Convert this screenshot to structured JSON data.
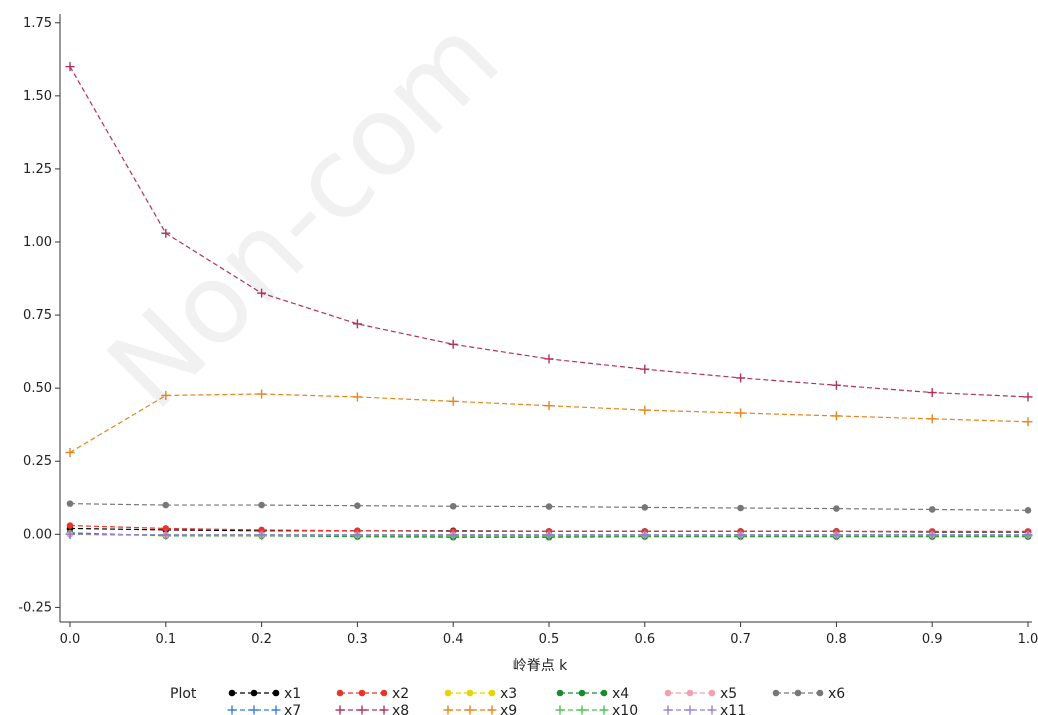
{
  "watermark": "Non-com",
  "chart_data": {
    "type": "line",
    "title": "",
    "xlabel": "岭脊点 k",
    "ylabel": "",
    "xlim": [
      0.0,
      1.0
    ],
    "ylim": [
      -0.3,
      1.78
    ],
    "x_ticks": [
      "0.0",
      "0.1",
      "0.2",
      "0.3",
      "0.4",
      "0.5",
      "0.6",
      "0.7",
      "0.8",
      "0.9",
      "1.0"
    ],
    "y_ticks": [
      "-0.25",
      "0.00",
      "0.25",
      "0.50",
      "0.75",
      "1.00",
      "1.25",
      "1.50",
      "1.75"
    ],
    "x": [
      0.0,
      0.1,
      0.2,
      0.3,
      0.4,
      0.5,
      0.6,
      0.7,
      0.8,
      0.9,
      1.0
    ],
    "grid": false,
    "legend": {
      "title": "Plot",
      "placement": "bottom"
    },
    "series": [
      {
        "name": "x1",
        "color": "#000000",
        "marker": "dot",
        "values": [
          0.02,
          0.015,
          0.012,
          0.012,
          0.012,
          0.01,
          0.01,
          0.01,
          0.01,
          0.008,
          0.008
        ]
      },
      {
        "name": "x2",
        "color": "#e8352b",
        "marker": "dot",
        "values": [
          0.03,
          0.02,
          0.015,
          0.012,
          0.01,
          0.01,
          0.01,
          0.01,
          0.01,
          0.01,
          0.01
        ]
      },
      {
        "name": "x3",
        "color": "#e8d400",
        "marker": "dot",
        "values": [
          0.0,
          -0.005,
          -0.005,
          -0.005,
          -0.005,
          -0.005,
          -0.005,
          -0.005,
          -0.005,
          -0.005,
          -0.005
        ]
      },
      {
        "name": "x4",
        "color": "#1a8a2e",
        "marker": "dot",
        "values": [
          0.005,
          -0.005,
          -0.005,
          -0.008,
          -0.01,
          -0.01,
          -0.008,
          -0.008,
          -0.008,
          -0.008,
          -0.008
        ]
      },
      {
        "name": "x5",
        "color": "#f2a0b0",
        "marker": "dot",
        "values": [
          0.0,
          -0.002,
          -0.002,
          -0.002,
          -0.002,
          -0.002,
          -0.002,
          -0.002,
          -0.002,
          -0.002,
          -0.002
        ]
      },
      {
        "name": "x6",
        "color": "#777777",
        "marker": "dot",
        "values": [
          0.105,
          0.1,
          0.1,
          0.098,
          0.096,
          0.095,
          0.092,
          0.09,
          0.088,
          0.085,
          0.082
        ]
      },
      {
        "name": "x7",
        "color": "#3a7fd0",
        "marker": "plus",
        "values": [
          0.0,
          -0.002,
          -0.002,
          -0.002,
          -0.002,
          -0.002,
          -0.002,
          -0.002,
          -0.002,
          -0.002,
          -0.002
        ]
      },
      {
        "name": "x8",
        "color": "#b03060",
        "marker": "plus",
        "values": [
          1.6,
          1.03,
          0.825,
          0.72,
          0.65,
          0.6,
          0.565,
          0.535,
          0.51,
          0.485,
          0.47
        ]
      },
      {
        "name": "x9",
        "color": "#e8831a",
        "marker": "plus",
        "values": [
          0.28,
          0.475,
          0.48,
          0.47,
          0.455,
          0.44,
          0.425,
          0.415,
          0.405,
          0.395,
          0.385
        ]
      },
      {
        "name": "x10",
        "color": "#4fc04f",
        "marker": "plus",
        "values": [
          0.0,
          -0.003,
          -0.004,
          -0.005,
          -0.006,
          -0.006,
          -0.005,
          -0.005,
          -0.005,
          -0.005,
          -0.005
        ]
      },
      {
        "name": "x11",
        "color": "#9b7fd0",
        "marker": "plus",
        "values": [
          0.0,
          -0.002,
          -0.002,
          -0.002,
          -0.002,
          -0.002,
          -0.002,
          -0.002,
          -0.002,
          -0.002,
          -0.002
        ]
      }
    ]
  }
}
